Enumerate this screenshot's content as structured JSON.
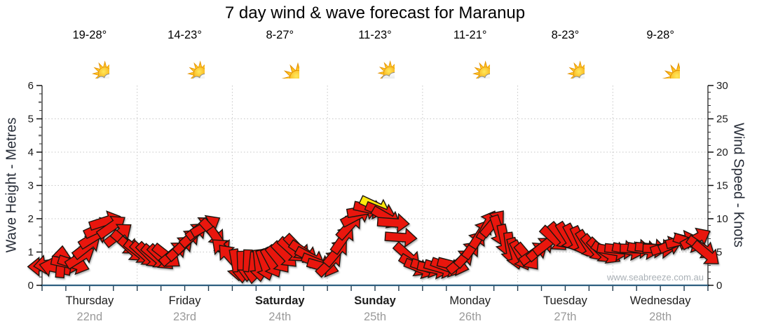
{
  "title": "7 day wind & wave forecast for Maranup",
  "watermark": "www.seabreeze.com.au",
  "colors": {
    "arrow_red": "#e9150e",
    "arrow_yellow": "#ffe70c",
    "arrow_outline": "#1a1210",
    "bottom_axis": "#2e5f80",
    "side_axis": "#222222",
    "grid": "#c6c6c6",
    "day_name": "#1d1d1d",
    "day_date": "#9a9a9a",
    "axis_title": "#272d38",
    "connector_line": "#adadad"
  },
  "days": [
    {
      "name": "Thursday",
      "date": "22nd",
      "temp": "19-28°",
      "condition": "partly cloudy",
      "icon": "partly-cloudy",
      "weekend": false
    },
    {
      "name": "Friday",
      "date": "23rd",
      "temp": "14-23°",
      "condition": "partly cloudy",
      "icon": "partly-cloudy",
      "weekend": false
    },
    {
      "name": "Saturday",
      "date": "24th",
      "temp": "8-27°",
      "condition": "sunny",
      "icon": "sunny",
      "weekend": true
    },
    {
      "name": "Sunday",
      "date": "25th",
      "temp": "11-23°",
      "condition": "rain showers",
      "icon": "showers",
      "weekend": true
    },
    {
      "name": "Monday",
      "date": "26th",
      "temp": "11-21°",
      "condition": "partly cloudy",
      "icon": "partly-cloudy",
      "weekend": false
    },
    {
      "name": "Tuesday",
      "date": "27th",
      "temp": "8-23°",
      "condition": "partly cloudy",
      "icon": "partly-cloudy",
      "weekend": false
    },
    {
      "name": "Wednesday",
      "date": "28th",
      "temp": "9-28°",
      "condition": "sunny",
      "icon": "sunny",
      "weekend": false
    }
  ],
  "axes": {
    "left_title": "Wave Height - Metres",
    "right_title": "Wind Speed - Knots",
    "left_ticks": [
      0,
      1,
      2,
      3,
      4,
      5,
      6
    ],
    "right_ticks": [
      0,
      5,
      10,
      15,
      20,
      25,
      30
    ]
  },
  "chart_data": {
    "type": "wind-arrow-timeseries",
    "title": "7 day wind & wave forecast for Maranup",
    "days_shown": 7,
    "categories": [
      "Thursday 22nd",
      "Friday 23rd",
      "Saturday 24th",
      "Sunday 25th",
      "Monday 26th",
      "Tuesday 27th",
      "Wednesday 28th"
    ],
    "left_axis": {
      "label": "Wave Height - Metres",
      "min": 0,
      "max": 6,
      "unit": "m"
    },
    "right_axis": {
      "label": "Wind Speed - Knots",
      "min": 0,
      "max": 30,
      "unit": "kn"
    },
    "grid": "dotted horizontal lines at each metre (1-5), dotted vertical lines at day boundaries",
    "highlight": "single yellow arrow at the Sunday peak (~12 kn)",
    "arrow_fields": [
      "time_days_from_start",
      "wind_speed_knots",
      "rotation_deg_cw_from_east",
      "optional_color"
    ],
    "arrows": [
      [
        0.02,
        2.8,
        180
      ],
      [
        0.08,
        3.2,
        172
      ],
      [
        0.14,
        2.6,
        192
      ],
      [
        0.2,
        3.5,
        -85
      ],
      [
        0.26,
        3.3,
        12
      ],
      [
        0.33,
        3.2,
        18
      ],
      [
        0.4,
        4.2,
        -32
      ],
      [
        0.47,
        5.8,
        -38
      ],
      [
        0.54,
        7.2,
        -32
      ],
      [
        0.6,
        8.6,
        -25
      ],
      [
        0.66,
        9.6,
        -18
      ],
      [
        0.73,
        8.8,
        -35
      ],
      [
        0.8,
        7.6,
        -38
      ],
      [
        0.87,
        6.4,
        40
      ],
      [
        0.94,
        5.4,
        42
      ],
      [
        1.01,
        5.0,
        38
      ],
      [
        1.07,
        4.7,
        42
      ],
      [
        1.13,
        4.5,
        45
      ],
      [
        1.19,
        4.3,
        40
      ],
      [
        1.25,
        4.2,
        44
      ],
      [
        1.31,
        4.4,
        38
      ],
      [
        1.38,
        4.8,
        -40
      ],
      [
        1.45,
        5.6,
        -42
      ],
      [
        1.52,
        6.6,
        -44
      ],
      [
        1.59,
        7.6,
        -42
      ],
      [
        1.66,
        8.6,
        -38
      ],
      [
        1.72,
        8.9,
        -30
      ],
      [
        1.79,
        8.0,
        48
      ],
      [
        1.86,
        6.6,
        55
      ],
      [
        1.92,
        5.2,
        222
      ],
      [
        1.98,
        4.2,
        228
      ],
      [
        2.04,
        3.1,
        80
      ],
      [
        2.1,
        2.8,
        88
      ],
      [
        2.16,
        3.0,
        92
      ],
      [
        2.22,
        2.7,
        96
      ],
      [
        2.28,
        3.0,
        84
      ],
      [
        2.34,
        3.1,
        72
      ],
      [
        2.41,
        3.4,
        62
      ],
      [
        2.48,
        3.9,
        52
      ],
      [
        2.55,
        4.6,
        46
      ],
      [
        2.62,
        5.3,
        42
      ],
      [
        2.68,
        5.7,
        46
      ],
      [
        2.75,
        5.0,
        34
      ],
      [
        2.82,
        4.2,
        28
      ],
      [
        2.89,
        3.4,
        22
      ],
      [
        2.95,
        2.8,
        16
      ],
      [
        3.02,
        3.3,
        -45
      ],
      [
        3.09,
        4.9,
        -50
      ],
      [
        3.16,
        6.9,
        -55
      ],
      [
        3.23,
        8.9,
        -48
      ],
      [
        3.3,
        10.4,
        -28
      ],
      [
        3.37,
        11.2,
        -10
      ],
      [
        3.44,
        11.5,
        12
      ],
      [
        3.5,
        11.9,
        25,
        "yellow"
      ],
      [
        3.56,
        11.1,
        22
      ],
      [
        3.62,
        10.2,
        30
      ],
      [
        3.69,
        9.4,
        4
      ],
      [
        3.77,
        7.2,
        4
      ],
      [
        3.84,
        4.5,
        42
      ],
      [
        3.91,
        3.0,
        32
      ],
      [
        3.97,
        2.6,
        22
      ],
      [
        4.04,
        2.7,
        18
      ],
      [
        4.11,
        2.5,
        12
      ],
      [
        4.18,
        2.6,
        16
      ],
      [
        4.25,
        2.8,
        20
      ],
      [
        4.32,
        3.0,
        14
      ],
      [
        4.4,
        3.6,
        -40
      ],
      [
        4.47,
        4.7,
        -48
      ],
      [
        4.54,
        6.1,
        -55
      ],
      [
        4.61,
        7.7,
        -58
      ],
      [
        4.68,
        9.0,
        -62
      ],
      [
        4.74,
        9.3,
        -50
      ],
      [
        4.8,
        8.2,
        72
      ],
      [
        4.86,
        6.8,
        78
      ],
      [
        4.92,
        5.6,
        82
      ],
      [
        4.97,
        4.8,
        75
      ],
      [
        5.03,
        4.5,
        62
      ],
      [
        5.1,
        4.3,
        50
      ],
      [
        5.17,
        4.8,
        -35
      ],
      [
        5.24,
        5.5,
        -40
      ],
      [
        5.31,
        6.3,
        -38
      ],
      [
        5.38,
        7.0,
        42
      ],
      [
        5.45,
        7.4,
        50
      ],
      [
        5.52,
        7.3,
        58
      ],
      [
        5.59,
        7.0,
        62
      ],
      [
        5.66,
        6.6,
        65
      ],
      [
        5.73,
        6.1,
        58
      ],
      [
        5.8,
        5.6,
        50
      ],
      [
        5.87,
        5.2,
        44
      ],
      [
        5.93,
        4.9,
        32
      ],
      [
        6.0,
        5.2,
        10
      ],
      [
        6.08,
        5.4,
        6
      ],
      [
        6.16,
        5.3,
        12
      ],
      [
        6.24,
        5.5,
        2
      ],
      [
        6.32,
        5.4,
        10
      ],
      [
        6.4,
        5.6,
        6
      ],
      [
        6.48,
        5.5,
        2
      ],
      [
        6.56,
        5.8,
        -18
      ],
      [
        6.64,
        6.3,
        -24
      ],
      [
        6.72,
        6.7,
        -14
      ],
      [
        6.8,
        6.5,
        18
      ],
      [
        6.87,
        7.0,
        -28
      ],
      [
        6.93,
        5.7,
        34
      ],
      [
        6.98,
        4.8,
        40
      ]
    ]
  }
}
